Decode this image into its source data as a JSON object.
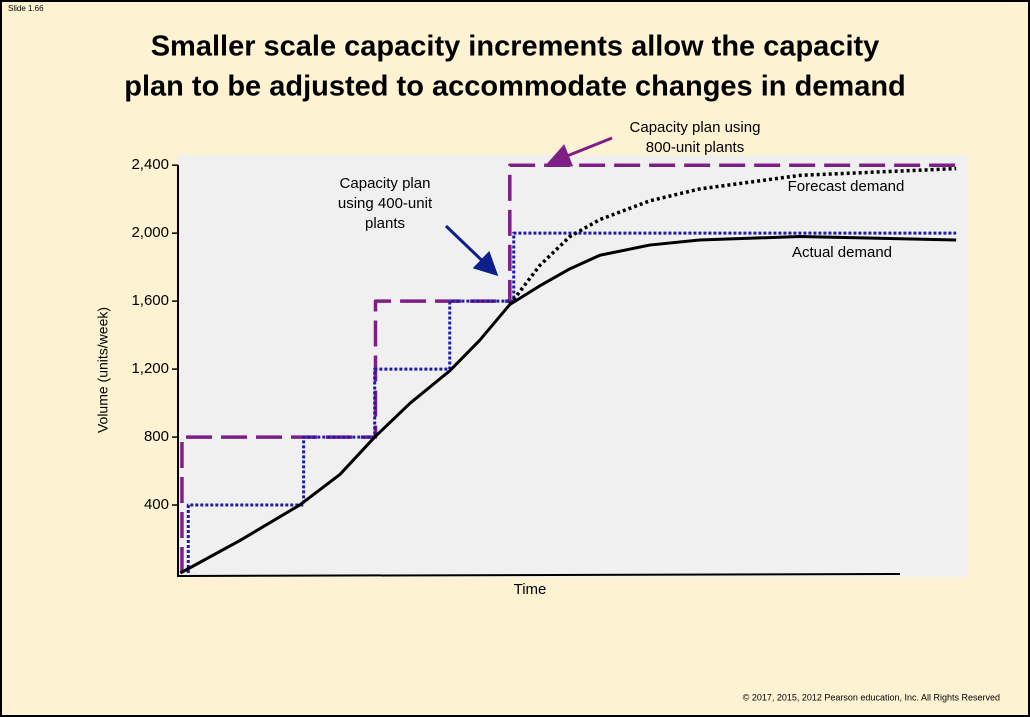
{
  "slide_number": "Slide 1.66",
  "footer": "© 2017, 2015, 2012 Pearson education, Inc. All Rights Reserved",
  "chart_data": {
    "type": "line",
    "title": [
      "Smaller scale capacity increments allow the capacity",
      "plan to be adjusted to accommodate changes in demand"
    ],
    "x_label": "Time",
    "y_label": "Volume (units/week)",
    "xlim": [
      0,
      100
    ],
    "ylim": [
      0,
      2460
    ],
    "yticks": [
      400,
      800,
      {
        "value": 1200,
        "label": "1,200"
      },
      {
        "value": 1600,
        "label": "1,600"
      },
      {
        "value": 2000,
        "label": "2,000"
      },
      {
        "value": 2400,
        "label": "2,400"
      }
    ],
    "series": [
      {
        "name": "Capacity plan using 800-unit plants",
        "color": "#7e1f86",
        "style": "dashed",
        "x": [
          0.5,
          0.5,
          25,
          25,
          42,
          42,
          98.5
        ],
        "values": [
          0,
          800,
          800,
          1600,
          1600,
          2400,
          2400
        ]
      },
      {
        "name": "Capacity plan using 400-unit plants",
        "color": "#1c1ca8",
        "style": "dotted",
        "x": [
          1.3,
          1.3,
          15.9,
          15.9,
          24.9,
          24.9,
          34.4,
          34.4,
          42.5,
          42.5,
          98.5
        ],
        "values": [
          0,
          400,
          400,
          800,
          800,
          1200,
          1200,
          1600,
          1600,
          2000,
          2000
        ]
      },
      {
        "name": "Forecast demand",
        "color": "#000000",
        "style": "dotted-heavy",
        "x": [
          42,
          45.8,
          49.6,
          53.4,
          59.7,
          66,
          78.7,
          98.5
        ],
        "values": [
          1580,
          1810,
          1980,
          2080,
          2190,
          2260,
          2340,
          2380
        ]
      },
      {
        "name": "Actual demand",
        "color": "#000000",
        "style": "solid",
        "x": [
          0.3,
          7.8,
          15.4,
          20.5,
          24.9,
          29.4,
          34.4,
          38.2,
          42,
          45.8,
          49.6,
          53.4,
          59.7,
          66,
          78.7,
          98.5
        ],
        "values": [
          0,
          190,
          400,
          580,
          800,
          1000,
          1190,
          1370,
          1580,
          1690,
          1790,
          1870,
          1930,
          1960,
          1980,
          1960
        ]
      }
    ],
    "annotations": [
      {
        "lines": [
          "Capacity plan using",
          "800-unit plants"
        ]
      },
      {
        "lines": [
          "Capacity plan",
          "using 400-unit",
          "plants"
        ]
      }
    ]
  }
}
